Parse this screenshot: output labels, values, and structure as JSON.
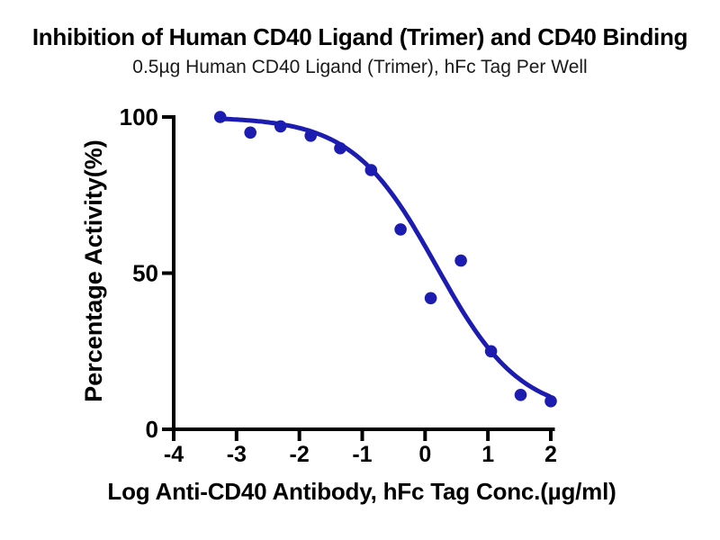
{
  "chart_data": {
    "type": "scatter",
    "title": "Inhibition of Human CD40 Ligand (Trimer) and CD40 Binding",
    "subtitle": "0.5µg Human CD40 Ligand (Trimer), hFc Tag Per Well",
    "xlabel": "Log Anti-CD40 Antibody, hFc Tag Conc.(µg/ml)",
    "ylabel": "Percentage Activity(%)",
    "x_ticks": [
      -4,
      -3,
      -2,
      -1,
      0,
      1,
      2
    ],
    "y_ticks": [
      0,
      50,
      100
    ],
    "xlim": [
      -4,
      2.05
    ],
    "ylim": [
      0,
      100
    ],
    "grid": false,
    "legend": "none",
    "marker_color": "#1c1cb0",
    "line_color": "#1c1cb0",
    "axis_color": "#000000",
    "points": [
      {
        "x": -3.26,
        "y": 100
      },
      {
        "x": -2.78,
        "y": 95
      },
      {
        "x": -2.3,
        "y": 97
      },
      {
        "x": -1.82,
        "y": 94
      },
      {
        "x": -1.35,
        "y": 90
      },
      {
        "x": -0.86,
        "y": 83
      },
      {
        "x": -0.39,
        "y": 64
      },
      {
        "x": 0.09,
        "y": 42
      },
      {
        "x": 0.57,
        "y": 54
      },
      {
        "x": 1.05,
        "y": 25
      },
      {
        "x": 1.52,
        "y": 11
      },
      {
        "x": 2.0,
        "y": 9
      }
    ],
    "curve_fit": {
      "model": "4PL",
      "top": 100,
      "bottom": 4.5,
      "log_ic50": 0.18,
      "hill_slope": 0.65
    }
  }
}
